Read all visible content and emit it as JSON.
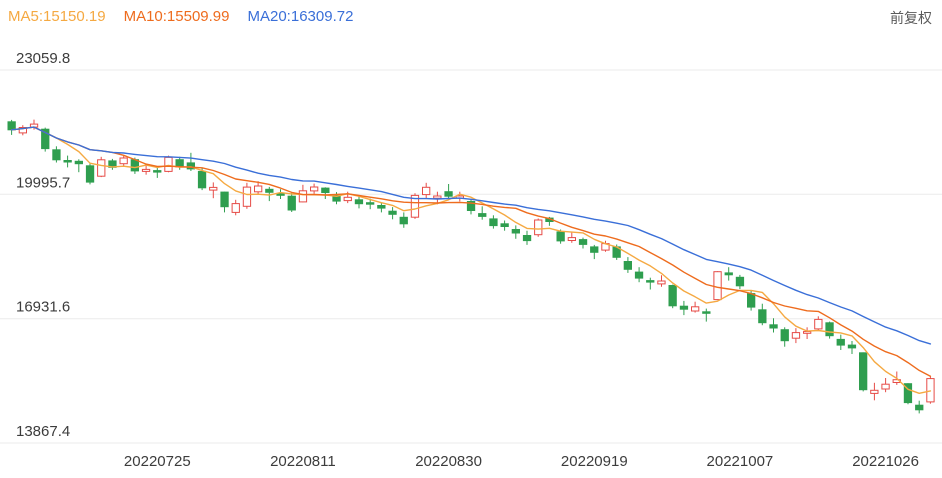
{
  "header": {
    "ma5": "MA5:15150.19",
    "ma10": "MA10:15509.99",
    "ma20": "MA20:16309.72",
    "adjust_mode": "前复权"
  },
  "chart_data": {
    "type": "candlestick",
    "title": "",
    "y_ticks": [
      23059.8,
      19995.7,
      16931.6,
      13867.4
    ],
    "x_tick_dates": [
      "20220725",
      "20220811",
      "20220830",
      "20220919",
      "20221007",
      "20221026"
    ],
    "colors": {
      "up": "#e64b47",
      "down": "#2f9e4f",
      "grid": "#ebebeb",
      "axis_label": "#3c3c3c"
    },
    "moving_averages": [
      {
        "name": "MA5",
        "period": 5,
        "latest": 15150.19,
        "color": "#f5a942"
      },
      {
        "name": "MA10",
        "period": 10,
        "latest": 15509.99,
        "color": "#ee6c1e"
      },
      {
        "name": "MA20",
        "period": 20,
        "latest": 16309.72,
        "color": "#3a6fd8"
      }
    ],
    "candle_format": [
      "date",
      "open",
      "high",
      "low",
      "close"
    ],
    "candles": [
      [
        "20220706",
        21783,
        21830,
        21460,
        21586.3
      ],
      [
        "20220707",
        21510,
        21700,
        21450,
        21643.6
      ],
      [
        "20220708",
        21652,
        21838,
        21590,
        21725.8
      ],
      [
        "20220711",
        21602,
        21640,
        21050,
        21124.2
      ],
      [
        "20220712",
        21092,
        21180,
        20780,
        20844.7
      ],
      [
        "20220713",
        20830,
        20950,
        20660,
        20797.9
      ],
      [
        "20220714",
        20810,
        20860,
        20540,
        20751.2
      ],
      [
        "20220715",
        20700,
        20760,
        20240,
        20297.7
      ],
      [
        "20220718",
        20442,
        20920,
        20420,
        20846.2
      ],
      [
        "20220719",
        20820,
        20870,
        20600,
        20661.1
      ],
      [
        "20220720",
        20750,
        20950,
        20700,
        20890.2
      ],
      [
        "20220721",
        20850,
        20900,
        20500,
        20574.6
      ],
      [
        "20220722",
        20560,
        20750,
        20480,
        20609.1
      ],
      [
        "20220725",
        20580,
        20650,
        20400,
        20562.9
      ],
      [
        "20220726",
        20560,
        20950,
        20540,
        20905.9
      ],
      [
        "20220727",
        20850,
        20920,
        20600,
        20670.0
      ],
      [
        "20220728",
        20770,
        21020,
        20570,
        20622.7
      ],
      [
        "20220729",
        20560,
        20640,
        20100,
        20156.5
      ],
      [
        "20220801",
        20100,
        20290,
        19900,
        20165.8
      ],
      [
        "20220802",
        20050,
        20060,
        19550,
        19689.2
      ],
      [
        "20220803",
        19550,
        19860,
        19480,
        19767.1
      ],
      [
        "20220804",
        19700,
        20280,
        19640,
        20174.0
      ],
      [
        "20220805",
        20060,
        20320,
        19980,
        20201.9
      ],
      [
        "20220808",
        20120,
        20180,
        19830,
        20045.8
      ],
      [
        "20220809",
        20010,
        20120,
        19880,
        20003.4
      ],
      [
        "20220810",
        19950,
        20030,
        19560,
        19610.8
      ],
      [
        "20220811",
        19810,
        20230,
        19800,
        20082.4
      ],
      [
        "20220812",
        20080,
        20260,
        20010,
        20175.6
      ],
      [
        "20220815",
        20150,
        20170,
        19880,
        20040.9
      ],
      [
        "20220816",
        19990,
        20050,
        19750,
        19830.9
      ],
      [
        "20220817",
        19840,
        20060,
        19780,
        19922.5
      ],
      [
        "20220818",
        19860,
        19940,
        19650,
        19763.9
      ],
      [
        "20220819",
        19790,
        19890,
        19630,
        19773.0
      ],
      [
        "20220822",
        19720,
        19780,
        19550,
        19656.9
      ],
      [
        "20220823",
        19580,
        19680,
        19380,
        19503.3
      ],
      [
        "20220824",
        19430,
        19550,
        19170,
        19268.7
      ],
      [
        "20220825",
        19430,
        20020,
        19390,
        19968.4
      ],
      [
        "20220826",
        19990,
        20280,
        19900,
        20170.0
      ],
      [
        "20220829",
        19900,
        20060,
        19750,
        19954.0
      ],
      [
        "20220830",
        20060,
        20250,
        19870,
        19949.0
      ],
      [
        "20220831",
        19900,
        20060,
        19820,
        19954.4
      ],
      [
        "20220901",
        19820,
        19880,
        19500,
        19597.3
      ],
      [
        "20220902",
        19520,
        19700,
        19370,
        19452.1
      ],
      [
        "20220905",
        19390,
        19480,
        19150,
        19225.7
      ],
      [
        "20220906",
        19270,
        19350,
        19100,
        19202.7
      ],
      [
        "20220907",
        19130,
        19230,
        18900,
        19044.3
      ],
      [
        "20220908",
        18980,
        19100,
        18750,
        18854.6
      ],
      [
        "20220909",
        19000,
        19400,
        18950,
        19362.2
      ],
      [
        "20220913",
        19410,
        19440,
        19220,
        19326.9
      ],
      [
        "20220914",
        19070,
        19130,
        18780,
        18847.1
      ],
      [
        "20220915",
        18860,
        19080,
        18800,
        18930.4
      ],
      [
        "20220916",
        18880,
        18930,
        18660,
        18761.7
      ],
      [
        "20220919",
        18700,
        18750,
        18400,
        18565.8
      ],
      [
        "20220920",
        18620,
        18850,
        18580,
        18781.4
      ],
      [
        "20220921",
        18700,
        18760,
        18380,
        18444.6
      ],
      [
        "20220922",
        18340,
        18450,
        18060,
        18147.9
      ],
      [
        "20220923",
        18080,
        18200,
        17830,
        17933.3
      ],
      [
        "20220926",
        17870,
        17940,
        17650,
        17855.1
      ],
      [
        "20220927",
        17790,
        18000,
        17720,
        17860.3
      ],
      [
        "20220928",
        17750,
        17770,
        17190,
        17250.9
      ],
      [
        "20220929",
        17240,
        17370,
        17020,
        17165.9
      ],
      [
        "20220930",
        17120,
        17350,
        17080,
        17222.8
      ],
      [
        "20221003",
        17100,
        17180,
        16860,
        17079.5
      ],
      [
        "20221005",
        17400,
        18100,
        17390,
        18087.9
      ],
      [
        "20221006",
        18060,
        18200,
        17870,
        18012.2
      ],
      [
        "20221007",
        17950,
        18010,
        17660,
        17740.1
      ],
      [
        "20221010",
        17550,
        17620,
        17130,
        17216.7
      ],
      [
        "20221011",
        17150,
        17300,
        16770,
        16832.4
      ],
      [
        "20221012",
        16780,
        16940,
        16590,
        16701.0
      ],
      [
        "20221013",
        16660,
        16720,
        16240,
        16389.3
      ],
      [
        "20221014",
        16450,
        16700,
        16330,
        16587.7
      ],
      [
        "20221017",
        16570,
        16720,
        16430,
        16612.9
      ],
      [
        "20221018",
        16680,
        16990,
        16640,
        16914.6
      ],
      [
        "20221019",
        16830,
        16860,
        16440,
        16511.3
      ],
      [
        "20221020",
        16420,
        16540,
        16160,
        16280.2
      ],
      [
        "20221021",
        16280,
        16380,
        16060,
        16211.1
      ],
      [
        "20221024",
        16090,
        16100,
        15140,
        15180.7
      ],
      [
        "20221025",
        15090,
        15350,
        14920,
        15165.6
      ],
      [
        "20221026",
        15200,
        15470,
        15120,
        15317.7
      ],
      [
        "20221027",
        15360,
        15630,
        15300,
        15427.9
      ],
      [
        "20221028",
        15330,
        15340,
        14820,
        14863.1
      ],
      [
        "20221031",
        14800,
        14910,
        14597,
        14687.0
      ],
      [
        "20221101",
        14880,
        15525,
        14837,
        15455.3
      ]
    ]
  }
}
